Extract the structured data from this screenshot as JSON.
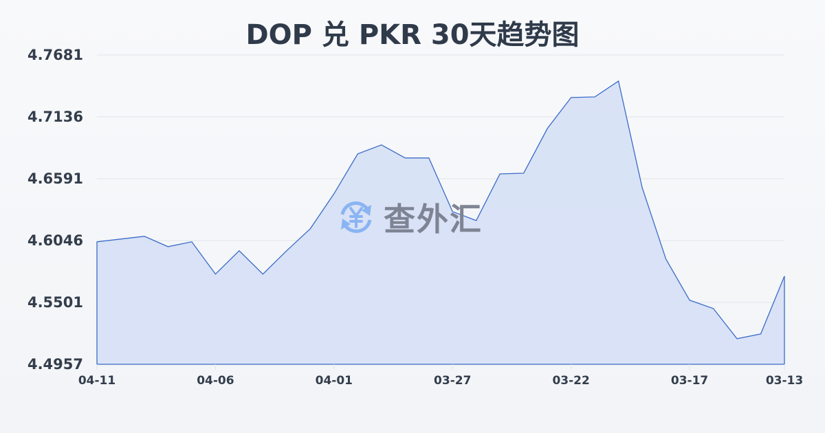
{
  "header": {
    "title": "DOP 兑 PKR 30天趋势图"
  },
  "watermark": {
    "text": "查外汇",
    "icon": "yen-exchange-icon"
  },
  "colors": {
    "line": "#3a6bc8",
    "fill": "#d6e0f5",
    "grid": "#e1e4ea",
    "text": "#333d4b"
  },
  "chart_data": {
    "type": "area",
    "title": "DOP 兑 PKR 30天趋势图",
    "xlabel": "",
    "ylabel": "",
    "ylim": [
      4.4957,
      4.7681
    ],
    "y_ticks": [
      "4.7681",
      "4.7136",
      "4.6591",
      "4.6046",
      "4.5501",
      "4.4957"
    ],
    "x_ticks": [
      "04-11",
      "04-06",
      "04-01",
      "03-27",
      "03-22",
      "03-17",
      "03-13"
    ],
    "grid": true,
    "legend": null,
    "x": [
      "04-11",
      "04-10",
      "04-09",
      "04-08",
      "04-07",
      "04-06",
      "04-05",
      "04-04",
      "04-03",
      "04-02",
      "04-01",
      "03-31",
      "03-30",
      "03-29",
      "03-28",
      "03-27",
      "03-26",
      "03-25",
      "03-24",
      "03-23",
      "03-22",
      "03-21",
      "03-20",
      "03-19",
      "03-18",
      "03-17",
      "03-16",
      "03-15",
      "03-14",
      "03-13"
    ],
    "series": [
      {
        "name": "DOP/PKR",
        "values": [
          4.6036,
          4.606,
          4.6084,
          4.5993,
          4.6036,
          4.5751,
          4.5957,
          4.5751,
          4.5957,
          4.6151,
          4.6459,
          4.681,
          4.6889,
          4.6774,
          4.6774,
          4.6302,
          4.6223,
          4.6634,
          4.664,
          4.7034,
          4.7306,
          4.7312,
          4.7451,
          4.6513,
          4.5884,
          4.5521,
          4.5448,
          4.5182,
          4.5224,
          4.5733
        ]
      }
    ]
  }
}
